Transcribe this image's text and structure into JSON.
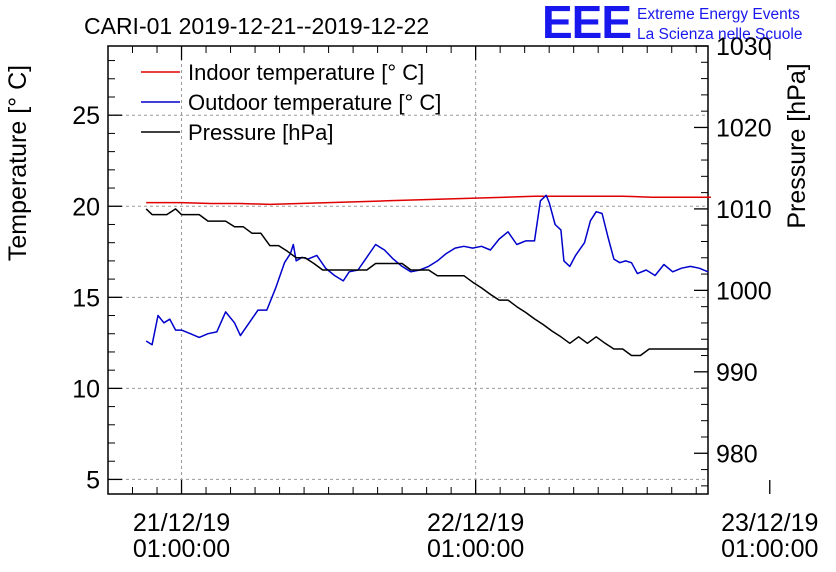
{
  "header": {
    "title": "CARI-01 2019-12-21--2019-12-22",
    "logo_text": "EEE",
    "logo_line1": "Extreme Energy Events",
    "logo_line2": "La Scienza nelle Scuole"
  },
  "chart_data": {
    "type": "line",
    "title": "CARI-01 2019-12-21--2019-12-22",
    "ylabel": "Temperature [° C]",
    "y2label": "Pressure [hPa]",
    "xlabel": "",
    "ylim": [
      4.2,
      28.8
    ],
    "y2lim": [
      975,
      1030
    ],
    "xlim": [
      -0.25,
      1.79
    ],
    "x_units": "days since 21/12/19 01:00:00",
    "grid": true,
    "legend_position": "top-left",
    "y_ticks": [
      5,
      10,
      15,
      20,
      25
    ],
    "y_tick_labels": [
      "5",
      "10",
      "15",
      "20",
      "25"
    ],
    "y2_ticks": [
      980,
      990,
      1000,
      1010,
      1020,
      1030
    ],
    "y2_tick_labels": [
      "980",
      "990",
      "1000",
      "1010",
      "1020",
      "1030"
    ],
    "x_ticks": [
      0,
      1,
      2
    ],
    "x_tick_labels": [
      {
        "date": "21/12/19",
        "time": "01:00:00"
      },
      {
        "date": "22/12/19",
        "time": "01:00:00"
      },
      {
        "date": "23/12/19",
        "time": "01:00:00"
      }
    ],
    "series": [
      {
        "name": "Indoor temperature [° C]",
        "axis": "left",
        "color": "#e00000",
        "x": [
          -0.12,
          0.0,
          0.1,
          0.2,
          0.3,
          0.4,
          0.5,
          0.6,
          0.7,
          0.8,
          0.9,
          1.0,
          1.1,
          1.2,
          1.3,
          1.4,
          1.5,
          1.6,
          1.7,
          1.8
        ],
        "values": [
          20.2,
          20.2,
          20.15,
          20.15,
          20.1,
          20.15,
          20.2,
          20.25,
          20.3,
          20.35,
          20.4,
          20.45,
          20.5,
          20.55,
          20.55,
          20.55,
          20.55,
          20.5,
          20.5,
          20.5
        ]
      },
      {
        "name": "Outdoor temperature [° C]",
        "axis": "left",
        "color": "#0000cc",
        "x": [
          -0.12,
          -0.1,
          -0.08,
          -0.06,
          -0.04,
          -0.02,
          0.0,
          0.03,
          0.06,
          0.09,
          0.12,
          0.15,
          0.18,
          0.2,
          0.23,
          0.26,
          0.29,
          0.32,
          0.35,
          0.37,
          0.38,
          0.39,
          0.41,
          0.43,
          0.46,
          0.49,
          0.52,
          0.55,
          0.57,
          0.6,
          0.63,
          0.66,
          0.69,
          0.72,
          0.75,
          0.78,
          0.81,
          0.84,
          0.87,
          0.9,
          0.93,
          0.96,
          0.99,
          1.02,
          1.05,
          1.08,
          1.11,
          1.14,
          1.17,
          1.2,
          1.22,
          1.24,
          1.25,
          1.27,
          1.29,
          1.3,
          1.32,
          1.34,
          1.37,
          1.39,
          1.41,
          1.43,
          1.45,
          1.47,
          1.49,
          1.51,
          1.53,
          1.55,
          1.58,
          1.61,
          1.64,
          1.67,
          1.7,
          1.73,
          1.76,
          1.79
        ],
        "values": [
          12.6,
          12.4,
          14.0,
          13.6,
          13.8,
          13.2,
          13.2,
          13.0,
          12.8,
          13.0,
          13.1,
          14.2,
          13.6,
          12.9,
          13.6,
          14.3,
          14.3,
          15.5,
          16.9,
          17.4,
          17.9,
          17.0,
          17.2,
          17.1,
          17.3,
          16.6,
          16.2,
          15.9,
          16.4,
          16.5,
          17.2,
          17.9,
          17.6,
          17.1,
          16.7,
          16.4,
          16.5,
          16.7,
          17.0,
          17.4,
          17.7,
          17.8,
          17.7,
          17.8,
          17.6,
          18.2,
          18.6,
          17.9,
          18.1,
          18.1,
          20.3,
          20.6,
          20.2,
          19.0,
          18.7,
          17.0,
          16.7,
          17.3,
          18.0,
          19.2,
          19.7,
          19.6,
          18.3,
          17.1,
          16.9,
          17.0,
          16.9,
          16.3,
          16.5,
          16.2,
          16.8,
          16.4,
          16.6,
          16.7,
          16.6,
          16.4
        ]
      },
      {
        "name": "Pressure [hPa]",
        "axis": "right",
        "color": "#000000",
        "x": [
          -0.12,
          -0.1,
          -0.08,
          -0.05,
          -0.02,
          0.0,
          0.03,
          0.06,
          0.09,
          0.12,
          0.15,
          0.18,
          0.21,
          0.24,
          0.27,
          0.3,
          0.33,
          0.36,
          0.39,
          0.42,
          0.45,
          0.48,
          0.51,
          0.54,
          0.57,
          0.6,
          0.63,
          0.66,
          0.69,
          0.72,
          0.75,
          0.78,
          0.81,
          0.84,
          0.87,
          0.9,
          0.93,
          0.96,
          0.99,
          1.02,
          1.05,
          1.08,
          1.11,
          1.14,
          1.17,
          1.2,
          1.23,
          1.26,
          1.29,
          1.32,
          1.35,
          1.38,
          1.41,
          1.44,
          1.47,
          1.5,
          1.53,
          1.56,
          1.59,
          1.62,
          1.65,
          1.68,
          1.71,
          1.74,
          1.79
        ],
        "values": [
          1010.0,
          1009.3,
          1009.3,
          1009.3,
          1010.0,
          1009.3,
          1009.3,
          1009.3,
          1008.5,
          1008.5,
          1008.5,
          1007.8,
          1007.8,
          1007.0,
          1007.0,
          1005.5,
          1005.5,
          1004.8,
          1004.0,
          1004.0,
          1003.3,
          1002.5,
          1002.5,
          1002.5,
          1002.5,
          1002.5,
          1002.5,
          1003.3,
          1003.3,
          1003.3,
          1003.3,
          1002.5,
          1002.5,
          1002.5,
          1001.8,
          1001.8,
          1001.8,
          1001.8,
          1001.0,
          1000.3,
          999.5,
          998.8,
          998.8,
          998.0,
          997.3,
          996.5,
          995.8,
          995.0,
          994.3,
          993.5,
          994.3,
          993.5,
          994.3,
          993.5,
          992.8,
          992.8,
          992.0,
          992.0,
          992.8,
          992.8,
          992.8,
          992.8,
          992.8,
          992.8,
          992.8
        ]
      }
    ]
  }
}
